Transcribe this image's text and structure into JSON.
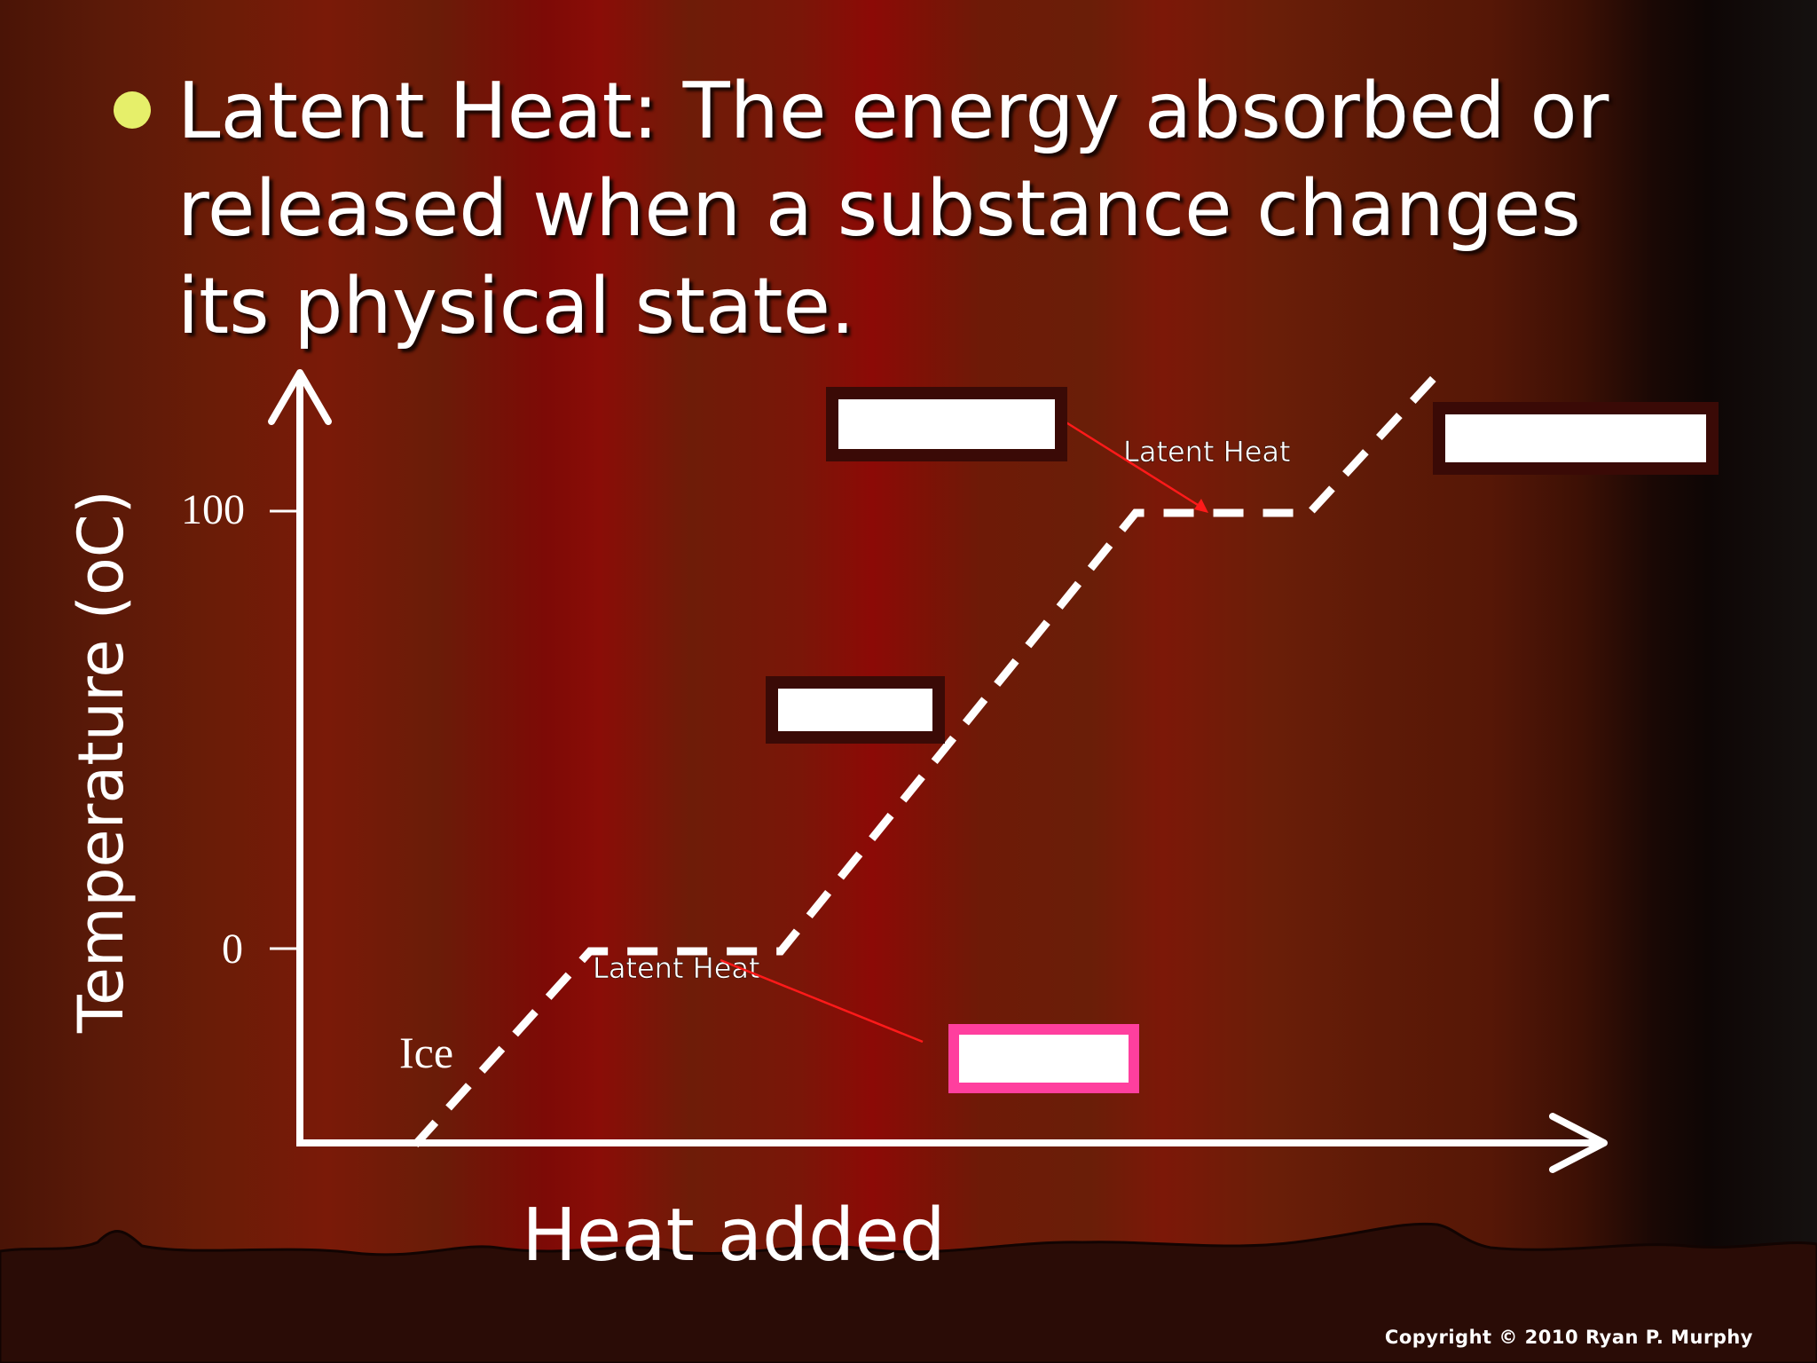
{
  "slide": {
    "bullet_text": "Latent Heat: The energy absorbed or released when a substance changes its physical state.",
    "copyright": "Copyright © 2010 Ryan P. Murphy"
  },
  "colors": {
    "bullet": "#e6ef6a",
    "axis": "#ffffff",
    "curve": "#ffffff",
    "pointer": "#ff1a1a",
    "box_border_dark": "#3a0a06",
    "box_border_pink": "#ff3f9e"
  },
  "diagram": {
    "y_axis_label": "Temperature (oC)",
    "x_axis_label": "Heat added",
    "y_ticks": [
      "100",
      "0"
    ],
    "curve_label_ice": "Ice",
    "latent_heat_label_low": "Latent Heat",
    "latent_heat_label_high": "Latent Heat",
    "label_boxes": [
      "blank",
      "blank",
      "blank",
      "blank"
    ]
  }
}
